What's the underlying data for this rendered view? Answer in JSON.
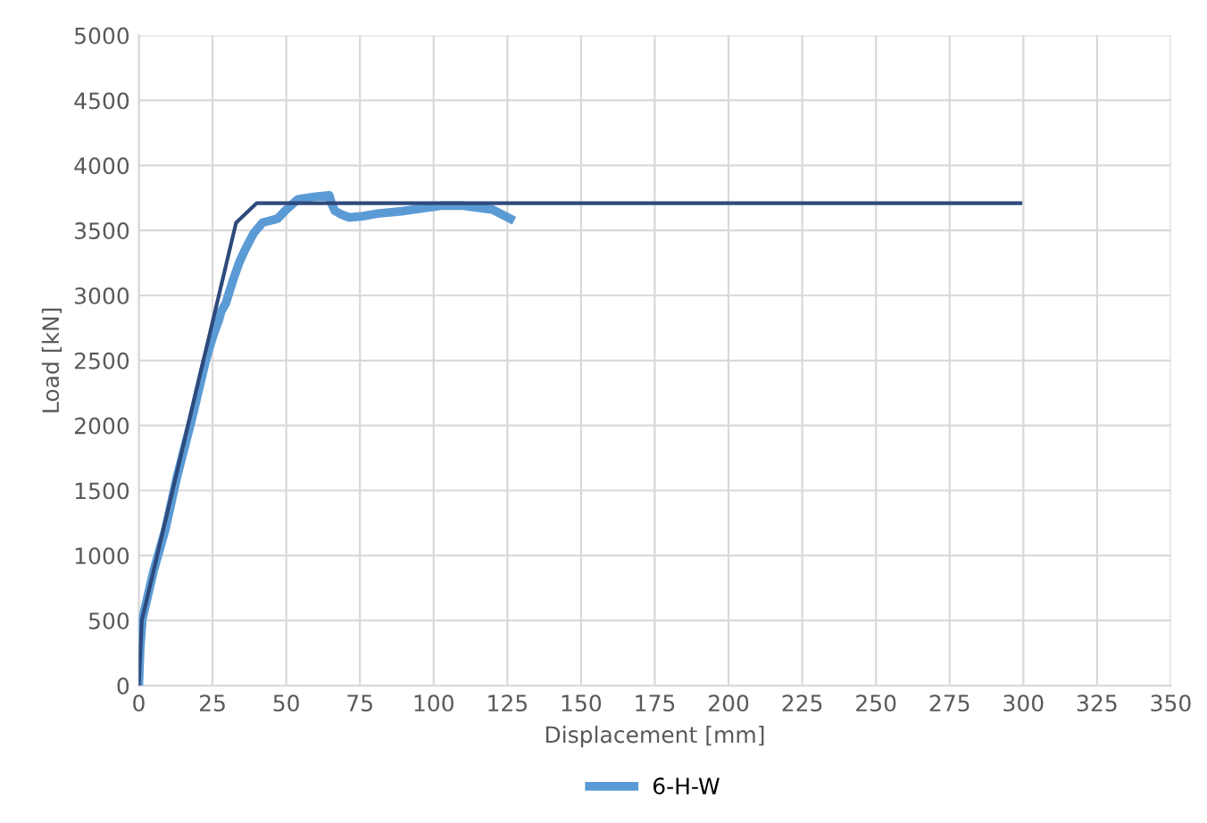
{
  "chart_data": {
    "type": "line",
    "xlabel": "Displacement [mm]",
    "ylabel": "Load [kN]",
    "xlim": [
      0,
      350
    ],
    "xticks": [
      0,
      25,
      50,
      75,
      100,
      125,
      150,
      175,
      200,
      225,
      250,
      275,
      300,
      325,
      350
    ],
    "ylim": [
      0,
      5000
    ],
    "yticks": [
      0,
      500,
      1000,
      1500,
      2000,
      2500,
      3000,
      3500,
      4000,
      4500,
      5000
    ],
    "grid": true,
    "legend": "bottom",
    "marker": "none",
    "line_style": "solid",
    "series": [
      {
        "name": "6-H-W",
        "color": "#5b9bd5",
        "x": [
          0,
          0.5,
          1.2,
          5,
          9,
          13,
          18,
          22.6,
          24,
          25.5,
          27,
          28,
          29.5,
          31,
          32,
          34,
          36,
          39,
          42,
          47,
          50,
          54,
          60,
          64.6,
          65.5,
          66.5,
          69,
          71.4,
          76,
          81,
          90,
          102.5,
          110,
          120,
          126
        ],
        "values": [
          0,
          300,
          510,
          880,
          1200,
          1610,
          2050,
          2490,
          2600,
          2710,
          2800,
          2880,
          2940,
          3050,
          3120,
          3250,
          3350,
          3480,
          3560,
          3590,
          3660,
          3740,
          3760,
          3770,
          3700,
          3650,
          3620,
          3600,
          3610,
          3630,
          3650,
          3690,
          3690,
          3660,
          3590
        ]
      },
      {
        "color": "#2e4a7d",
        "x": [
          0,
          1,
          33,
          40,
          299
        ],
        "values": [
          0,
          500,
          3560,
          3710,
          3710
        ]
      }
    ]
  }
}
